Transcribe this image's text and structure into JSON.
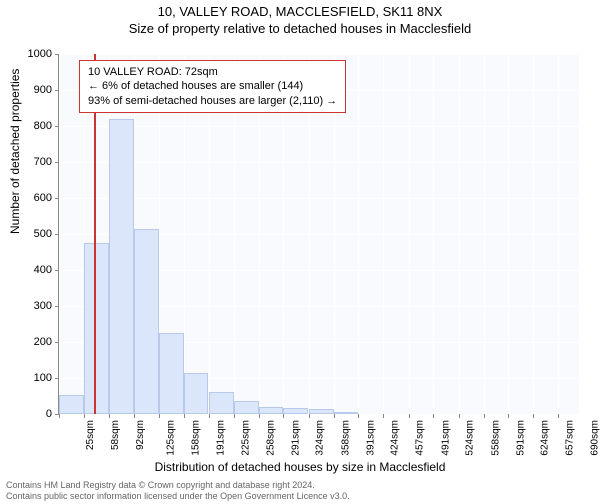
{
  "titles": {
    "main": "10, VALLEY ROAD, MACCLESFIELD, SK11 8NX",
    "sub": "Size of property relative to detached houses in Macclesfield"
  },
  "axes": {
    "y_title": "Number of detached properties",
    "x_title": "Distribution of detached houses by size in Macclesfield",
    "y_min": 0,
    "y_max": 1000,
    "y_tick_step": 100,
    "y_ticks": [
      0,
      100,
      200,
      300,
      400,
      500,
      600,
      700,
      800,
      900,
      1000
    ]
  },
  "legend": {
    "line1": "10 VALLEY ROAD: 72sqm",
    "line2": "← 6% of detached houses are smaller (144)",
    "line3": "93% of semi-detached houses are larger (2,110) →"
  },
  "marker": {
    "value_sqm": 72,
    "color": "#cc3333"
  },
  "histogram": {
    "type": "bar",
    "bin_start": 25,
    "bin_width_sqm": 33,
    "bar_fill": "#dbe6fa",
    "bar_stroke": "#b8c9ea",
    "background_color": "#f9fafd",
    "grid_color": "#ffffff",
    "categories_sqm": [
      25,
      58,
      92,
      125,
      158,
      191,
      225,
      258,
      291,
      324,
      358,
      391,
      424,
      457,
      491,
      524,
      558,
      591,
      624,
      657,
      690
    ],
    "category_labels": [
      "25sqm",
      "58sqm",
      "92sqm",
      "125sqm",
      "158sqm",
      "191sqm",
      "225sqm",
      "258sqm",
      "291sqm",
      "324sqm",
      "358sqm",
      "391sqm",
      "424sqm",
      "457sqm",
      "491sqm",
      "524sqm",
      "558sqm",
      "591sqm",
      "624sqm",
      "657sqm",
      "690sqm"
    ],
    "values": [
      52,
      475,
      820,
      515,
      225,
      115,
      60,
      35,
      20,
      18,
      15,
      5,
      0,
      0,
      0,
      0,
      0,
      0,
      0,
      0,
      0
    ]
  },
  "footer": {
    "line1": "Contains HM Land Registry data © Crown copyright and database right 2024.",
    "line2": "Contains public sector information licensed under the Open Government Licence v3.0."
  }
}
